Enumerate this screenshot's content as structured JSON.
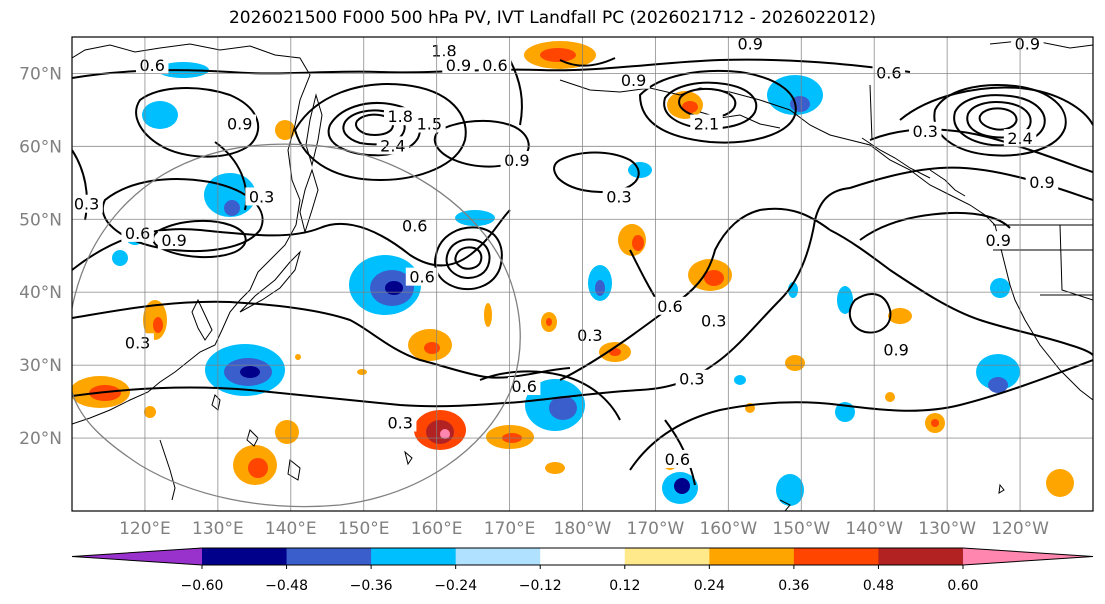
{
  "figure": {
    "title": "2026021500 F000 500 hPa PV, IVT Landfall PC (2026021712 - 2026022012)"
  },
  "map": {
    "projection": "plate-carree",
    "lon_range": [
      110,
      250
    ],
    "lat_range": [
      10,
      75
    ],
    "lon_ticks": [
      "120°E",
      "130°E",
      "140°E",
      "150°E",
      "160°E",
      "170°E",
      "180°W",
      "170°W",
      "160°W",
      "150°W",
      "140°W",
      "130°W",
      "120°W"
    ],
    "lat_ticks": [
      "20°N",
      "30°N",
      "40°N",
      "50°N",
      "60°N",
      "70°N"
    ],
    "colors": {
      "axis": "#000000",
      "grid": "#808080",
      "tick_label": "#808080"
    }
  },
  "chart_data": {
    "type": "heatmap",
    "title": "2026021500 F000 500 hPa PV, IVT Landfall PC (2026021712 - 2026022012)",
    "xlim": [
      110,
      250
    ],
    "ylim": [
      10,
      75
    ],
    "grid": true,
    "contour_labels": [
      {
        "text": "0.6",
        "x": 121,
        "y": 71
      },
      {
        "text": "0.9",
        "x": 133,
        "y": 63
      },
      {
        "text": "0.3",
        "x": 136,
        "y": 53
      },
      {
        "text": "0.3",
        "x": 112,
        "y": 52
      },
      {
        "text": "0.6",
        "x": 119,
        "y": 48
      },
      {
        "text": "0.9",
        "x": 124,
        "y": 47
      },
      {
        "text": "1.8",
        "x": 155,
        "y": 64
      },
      {
        "text": "2.4",
        "x": 154,
        "y": 60
      },
      {
        "text": "1.5",
        "x": 159,
        "y": 63
      },
      {
        "text": "0.6",
        "x": 157,
        "y": 49
      },
      {
        "text": "0.6",
        "x": 158,
        "y": 42
      },
      {
        "text": "1.8",
        "x": 161,
        "y": 73
      },
      {
        "text": "0.9",
        "x": 163,
        "y": 71
      },
      {
        "text": "0.6",
        "x": 168,
        "y": 71
      },
      {
        "text": "0.9",
        "x": 171,
        "y": 58
      },
      {
        "text": "0.3",
        "x": 185,
        "y": 53
      },
      {
        "text": "0.9",
        "x": 187,
        "y": 69
      },
      {
        "text": "2.1",
        "x": 197,
        "y": 63
      },
      {
        "text": "0.9",
        "x": 203,
        "y": 74
      },
      {
        "text": "0.6",
        "x": 222,
        "y": 70
      },
      {
        "text": "0.3",
        "x": 227,
        "y": 62
      },
      {
        "text": "0.9",
        "x": 241,
        "y": 74
      },
      {
        "text": "2.4",
        "x": 240,
        "y": 61
      },
      {
        "text": "0.9",
        "x": 243,
        "y": 55
      },
      {
        "text": "0.9",
        "x": 237,
        "y": 47
      },
      {
        "text": "0.6",
        "x": 192,
        "y": 38
      },
      {
        "text": "0.3",
        "x": 198,
        "y": 36
      },
      {
        "text": "0.3",
        "x": 181,
        "y": 34
      },
      {
        "text": "0.3",
        "x": 155,
        "y": 22
      },
      {
        "text": "0.6",
        "x": 172,
        "y": 27
      },
      {
        "text": "0.3",
        "x": 195,
        "y": 28
      },
      {
        "text": "0.9",
        "x": 223,
        "y": 32
      },
      {
        "text": "0.3",
        "x": 119,
        "y": 33
      },
      {
        "text": "0.6",
        "x": 193,
        "y": 17
      }
    ]
  },
  "colorbar": {
    "ticks": [
      "−0.60",
      "−0.48",
      "−0.36",
      "−0.24",
      "−0.12",
      "0.12",
      "0.24",
      "0.36",
      "0.48",
      "0.60"
    ],
    "levels": [
      -0.6,
      -0.48,
      -0.36,
      -0.24,
      -0.12,
      0.12,
      0.24,
      0.36,
      0.48,
      0.6
    ],
    "colors": [
      "#9932cc",
      "#00008b",
      "#3a5fcd",
      "#00bfff",
      "#b0e2ff",
      "#ffffff",
      "#ffe98a",
      "#ffa500",
      "#ff4500",
      "#b22222",
      "#ff86ae"
    ],
    "extend": "both"
  }
}
